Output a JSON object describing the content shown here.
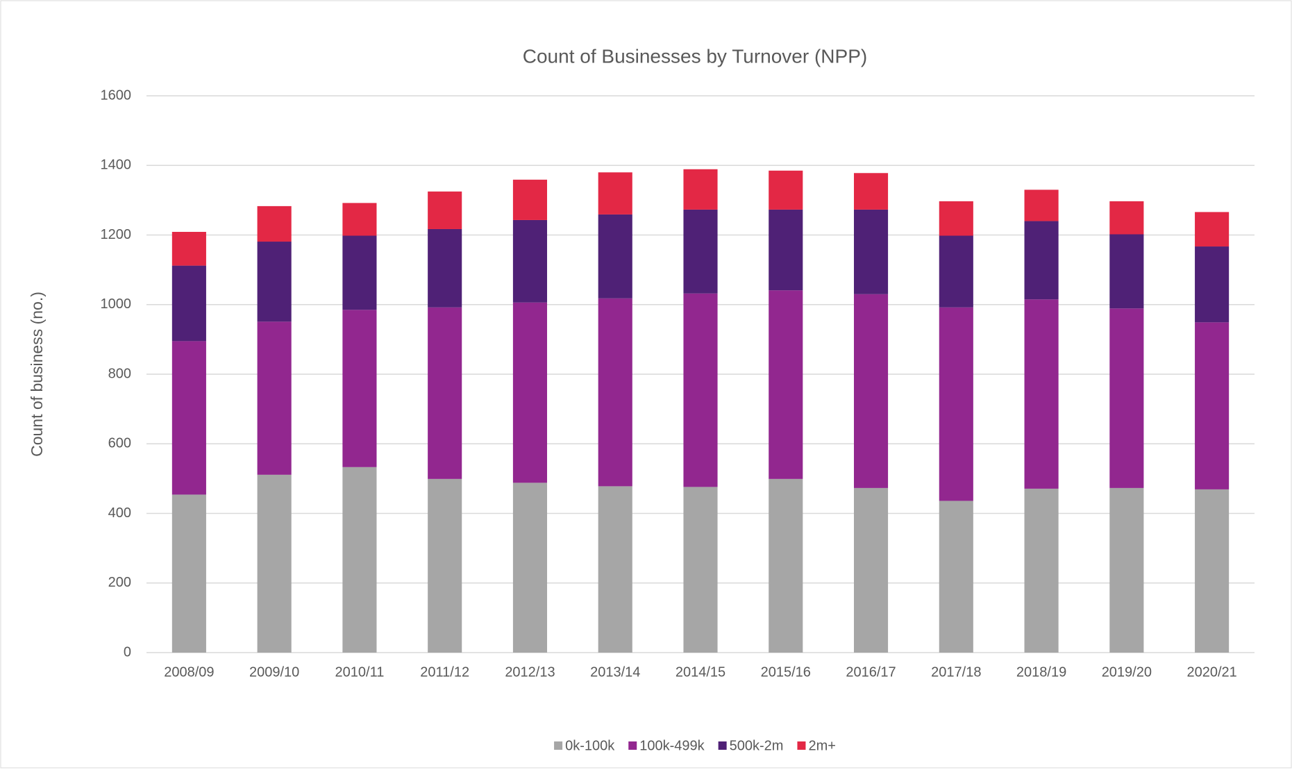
{
  "chart_data": {
    "type": "stacked_bar",
    "title": "Count of Businesses by Turnover (NPP)",
    "y_label": "Count of business (no.)",
    "categories": [
      "2008/09",
      "2009/10",
      "2010/11",
      "2011/12",
      "2012/13",
      "2013/14",
      "2014/15",
      "2015/16",
      "2016/17",
      "2017/18",
      "2018/19",
      "2019/20",
      "2020/21"
    ],
    "series": [
      {
        "name": "0k-100k",
        "color": "#a6a6a6",
        "values": [
          454,
          511,
          533,
          499,
          488,
          478,
          476,
          499,
          473,
          436,
          471,
          473,
          469
        ]
      },
      {
        "name": "100k-499k",
        "color": "#92278f",
        "values": [
          441,
          440,
          452,
          493,
          518,
          540,
          556,
          542,
          557,
          556,
          544,
          516,
          480
        ]
      },
      {
        "name": "500k-2m",
        "color": "#4f2176",
        "values": [
          217,
          230,
          213,
          225,
          237,
          241,
          241,
          232,
          243,
          206,
          225,
          213,
          218
        ]
      },
      {
        "name": "2m+",
        "color": "#e32845",
        "values": [
          97,
          102,
          94,
          108,
          116,
          121,
          116,
          112,
          105,
          99,
          90,
          95,
          99
        ]
      }
    ],
    "ylim": [
      0,
      1600
    ],
    "yticks": [
      0,
      200,
      400,
      600,
      800,
      1000,
      1200,
      1400,
      1600
    ],
    "grid": true,
    "legend": "bottom"
  }
}
